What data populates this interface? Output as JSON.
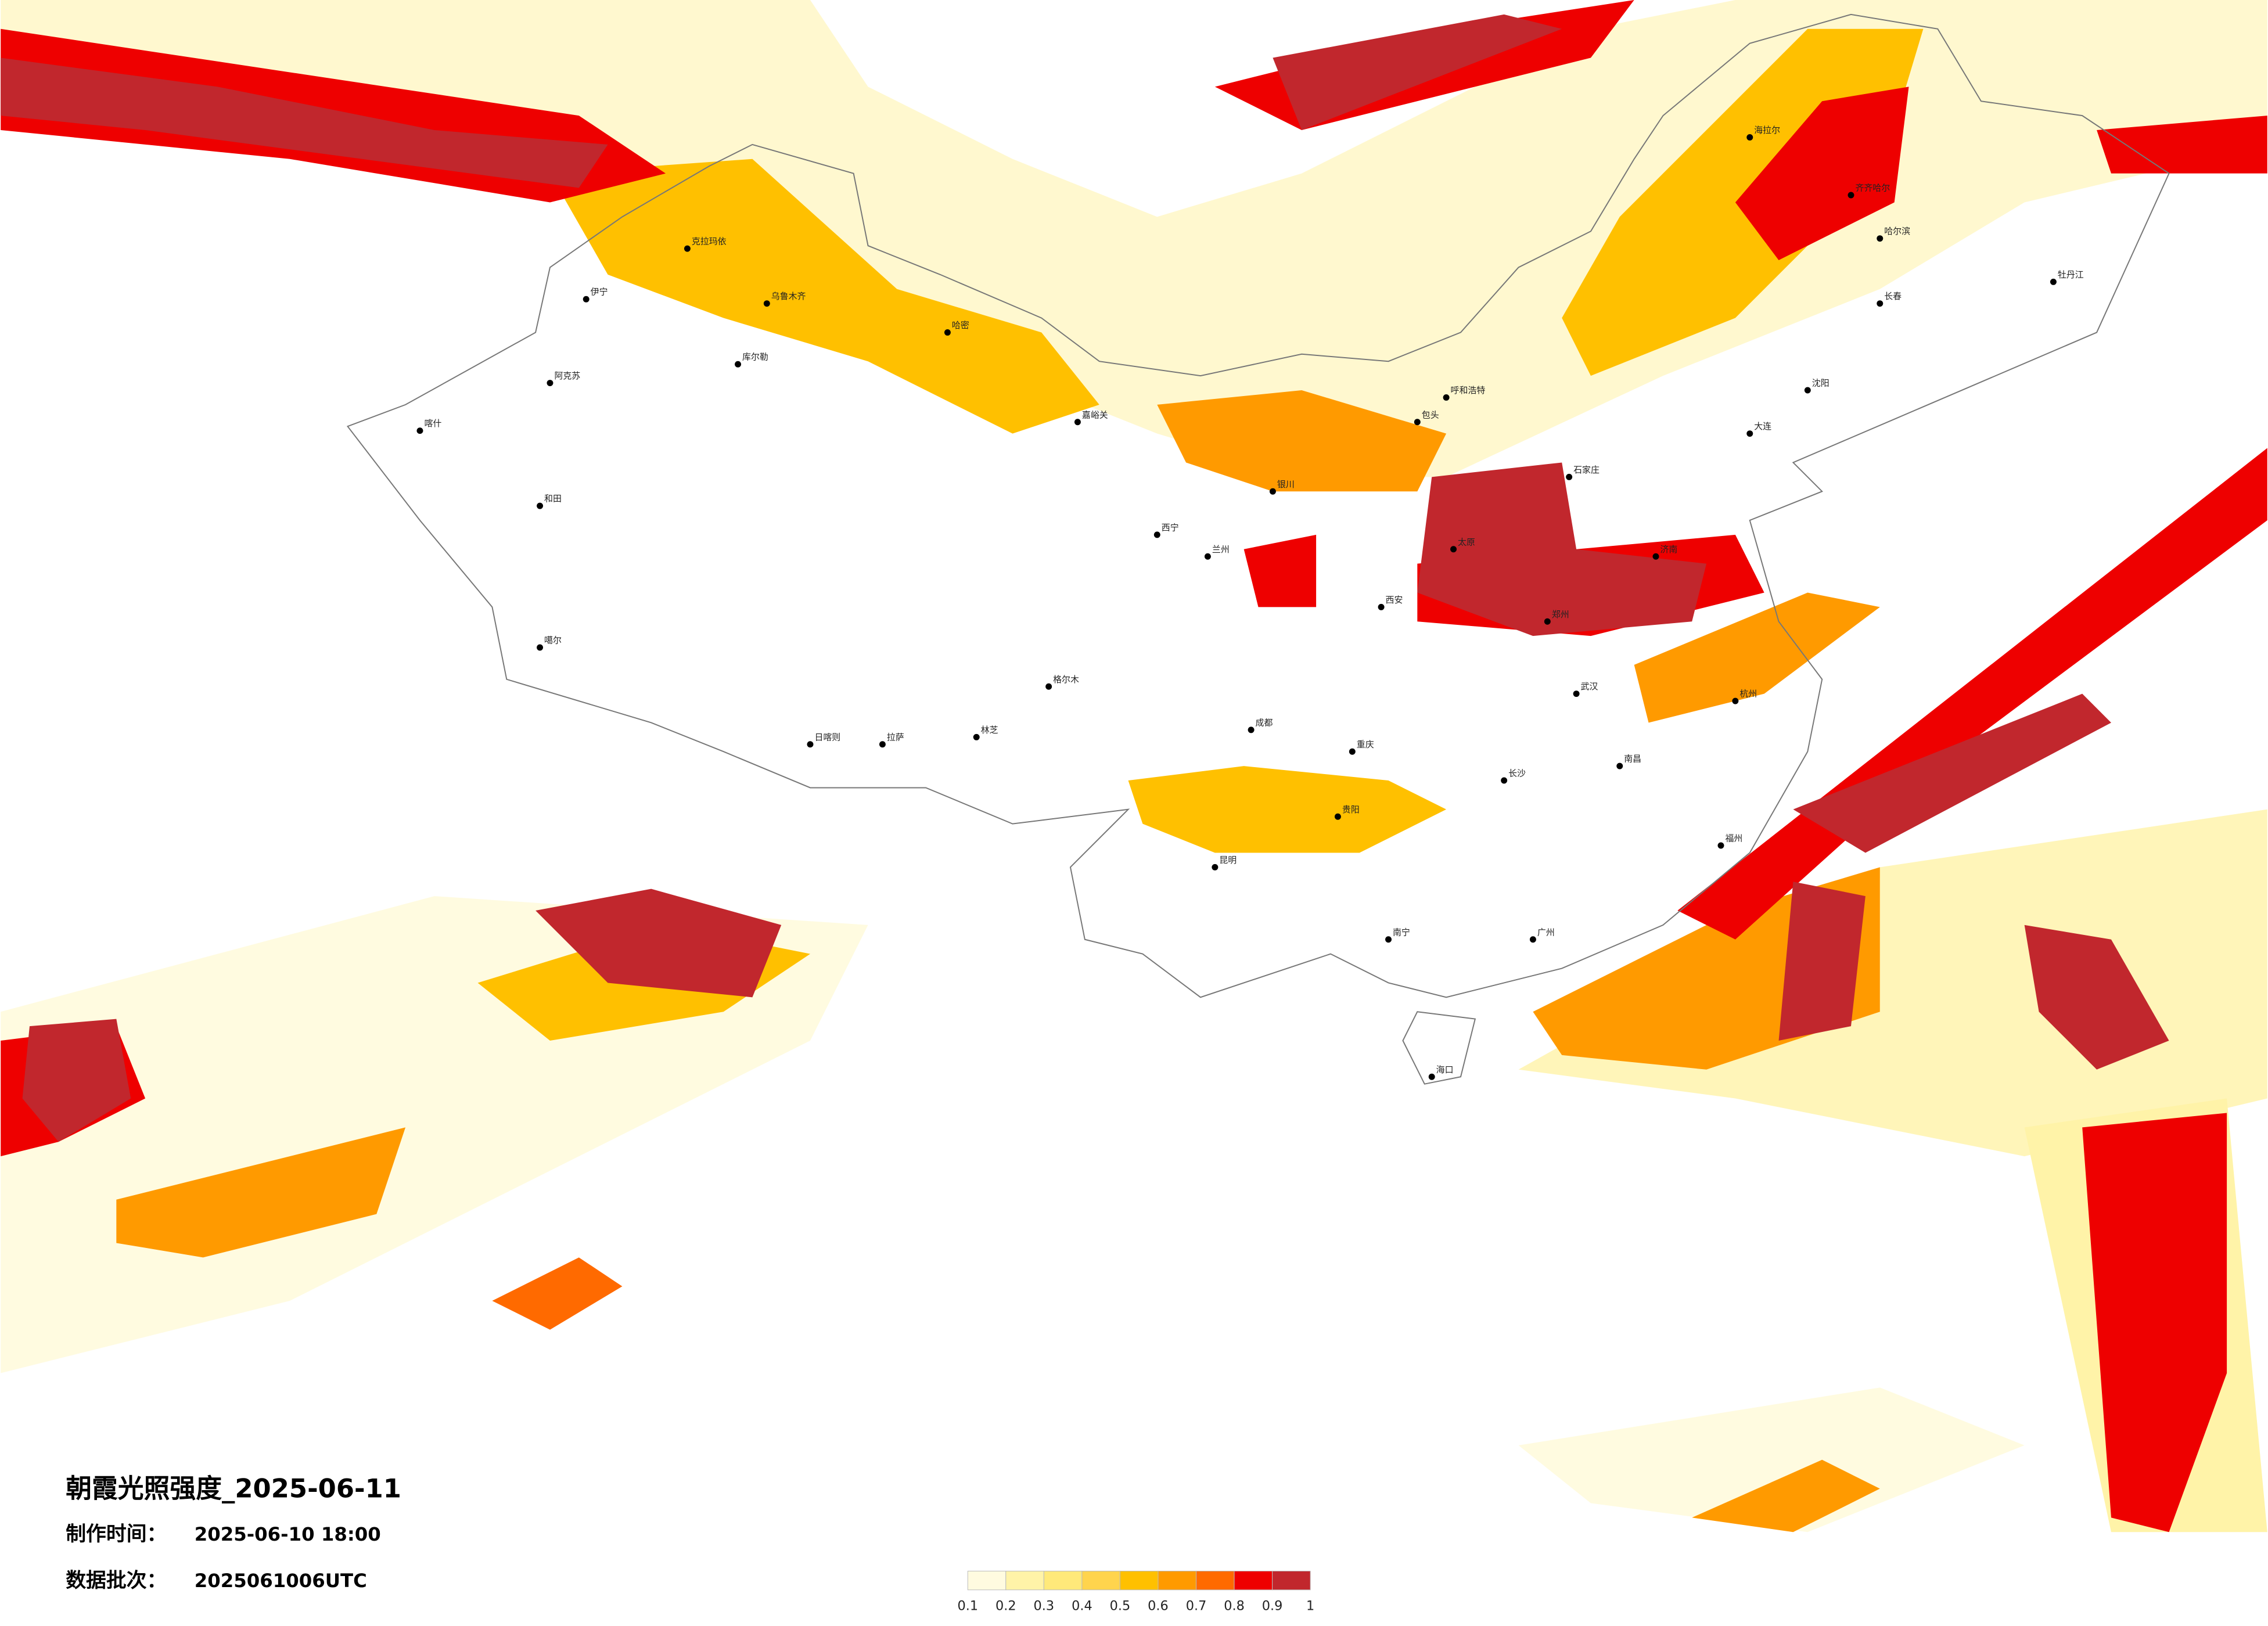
{
  "header": {
    "title": "朝霞光照强度_2025-06-11",
    "made_label": "制作时间：",
    "made_time": "2025-06-10 18:00",
    "batch_label": "数据批次：",
    "batch": "2025061006UTC"
  },
  "legend": {
    "colors": [
      "#fffbe0",
      "#fff3a8",
      "#ffe97a",
      "#ffd44d",
      "#ffc000",
      "#ff9a00",
      "#ff6a00",
      "#ee0000",
      "#c1272d"
    ],
    "ticks": [
      0.1,
      0.2,
      0.3,
      0.4,
      0.5,
      0.6,
      0.7,
      0.8,
      0.9,
      1
    ]
  },
  "cities": [
    "伊宁",
    "克拉玛依",
    "乌鲁木齐",
    "哈密",
    "库尔勒",
    "阿克苏",
    "喀什",
    "和田",
    "噶尔",
    "日喀则",
    "拉萨",
    "林芝",
    "格尔木",
    "嘉峪关",
    "西宁",
    "兰州",
    "银川",
    "呼和浩特",
    "包头",
    "太原",
    "石家庄",
    "济南",
    "郑州",
    "西安",
    "成都",
    "重庆",
    "昆明",
    "贵阳",
    "南宁",
    "长沙",
    "武汉",
    "南昌",
    "杭州",
    "福州",
    "广州",
    "海口",
    "哈尔滨",
    "长春",
    "沈阳",
    "齐齐哈尔",
    "牡丹江",
    "海拉尔",
    "大连"
  ]
}
